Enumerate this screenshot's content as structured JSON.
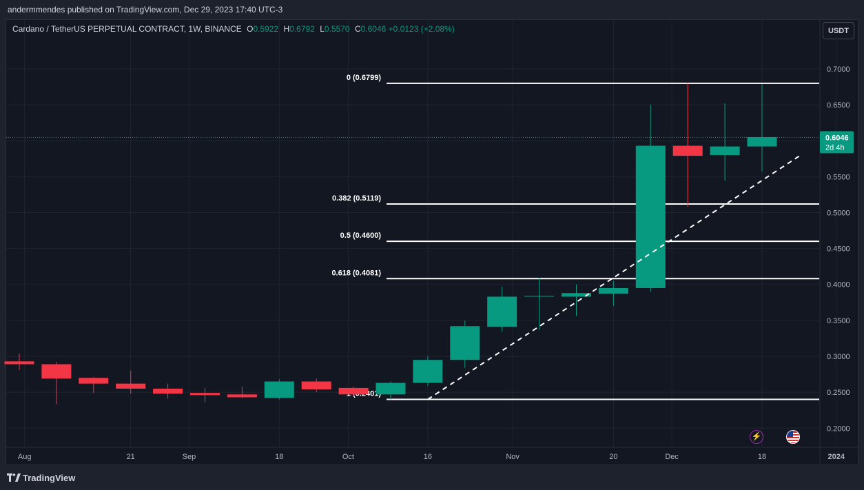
{
  "header": {
    "published": "andermmendes published on TradingView.com, Dec 29, 2023 17:40 UTC-3"
  },
  "legend": {
    "symbol": "Cardano / TetherUS PERPETUAL CONTRACT, 1W, BINANCE",
    "o_label": "O",
    "o": "0.5922",
    "h_label": "H",
    "h": "0.6792",
    "l_label": "L",
    "l": "0.5570",
    "c_label": "C",
    "c": "0.6046",
    "change": "+0.0123 (+2.08%)"
  },
  "currency_button": "USDT",
  "footer": {
    "brand": "TradingView"
  },
  "colors": {
    "up": "#089981",
    "down": "#f23645",
    "background": "#131722",
    "text": "#d1d4dc"
  },
  "icons": [
    "bolt-icon",
    "us-flag-icon"
  ],
  "chart_data": {
    "type": "candlestick",
    "x_ticks": [
      "Aug",
      "21",
      "Sep",
      "18",
      "Oct",
      "16",
      "Nov",
      "20",
      "Dec",
      "18",
      "2024"
    ],
    "y_ticks": [
      "0.7000",
      "0.6500",
      "0.6000",
      "0.5500",
      "0.5000",
      "0.4500",
      "0.4000",
      "0.3500",
      "0.3000",
      "0.2500",
      "0.2000"
    ],
    "ylim": [
      0.16,
      0.745
    ],
    "last_price": {
      "value": "0.6046",
      "countdown": "2d 4h"
    },
    "candles": [
      {
        "date": "2023-07-31",
        "o": 0.293,
        "h": 0.304,
        "l": 0.281,
        "c": 0.289
      },
      {
        "date": "2023-08-07",
        "o": 0.289,
        "h": 0.292,
        "l": 0.233,
        "c": 0.269
      },
      {
        "date": "2023-08-14",
        "o": 0.27,
        "h": 0.271,
        "l": 0.249,
        "c": 0.262
      },
      {
        "date": "2023-08-21",
        "o": 0.262,
        "h": 0.28,
        "l": 0.248,
        "c": 0.255
      },
      {
        "date": "2023-08-28",
        "o": 0.255,
        "h": 0.262,
        "l": 0.241,
        "c": 0.248
      },
      {
        "date": "2023-09-04",
        "o": 0.249,
        "h": 0.256,
        "l": 0.236,
        "c": 0.246
      },
      {
        "date": "2023-09-11",
        "o": 0.247,
        "h": 0.258,
        "l": 0.242,
        "c": 0.243
      },
      {
        "date": "2023-09-18",
        "o": 0.242,
        "h": 0.268,
        "l": 0.24,
        "c": 0.265
      },
      {
        "date": "2023-09-25",
        "o": 0.265,
        "h": 0.269,
        "l": 0.25,
        "c": 0.254
      },
      {
        "date": "2023-10-02",
        "o": 0.256,
        "h": 0.258,
        "l": 0.244,
        "c": 0.247
      },
      {
        "date": "2023-10-09",
        "o": 0.247,
        "h": 0.265,
        "l": 0.24,
        "c": 0.263
      },
      {
        "date": "2023-10-16",
        "o": 0.263,
        "h": 0.3,
        "l": 0.259,
        "c": 0.295
      },
      {
        "date": "2023-10-23",
        "o": 0.295,
        "h": 0.35,
        "l": 0.284,
        "c": 0.342
      },
      {
        "date": "2023-10-30",
        "o": 0.341,
        "h": 0.397,
        "l": 0.334,
        "c": 0.383
      },
      {
        "date": "2023-11-06",
        "o": 0.383,
        "h": 0.409,
        "l": 0.337,
        "c": 0.384
      },
      {
        "date": "2023-11-13",
        "o": 0.383,
        "h": 0.4,
        "l": 0.356,
        "c": 0.388
      },
      {
        "date": "2023-11-20",
        "o": 0.387,
        "h": 0.405,
        "l": 0.37,
        "c": 0.395
      },
      {
        "date": "2023-11-27",
        "o": 0.395,
        "h": 0.65,
        "l": 0.39,
        "c": 0.593
      },
      {
        "date": "2023-12-04",
        "o": 0.593,
        "h": 0.68,
        "l": 0.508,
        "c": 0.579
      },
      {
        "date": "2023-12-11",
        "o": 0.58,
        "h": 0.652,
        "l": 0.544,
        "c": 0.592
      },
      {
        "date": "2023-12-18",
        "o": 0.592,
        "h": 0.679,
        "l": 0.557,
        "c": 0.605
      }
    ],
    "fib_levels": [
      {
        "label": "0 (0.6799)",
        "value": 0.6799
      },
      {
        "label": "0.382 (0.5119)",
        "value": 0.5119
      },
      {
        "label": "0.5 (0.4600)",
        "value": 0.46
      },
      {
        "label": "0.618 (0.4081)",
        "value": 0.4081
      },
      {
        "label": "1 (0.2401)",
        "value": 0.2401
      }
    ],
    "trendline": {
      "from_date": "2023-10-16",
      "from_value": 0.2401,
      "to_date": "2023-12-25",
      "to_value": 0.5786,
      "style": "dashed"
    }
  }
}
